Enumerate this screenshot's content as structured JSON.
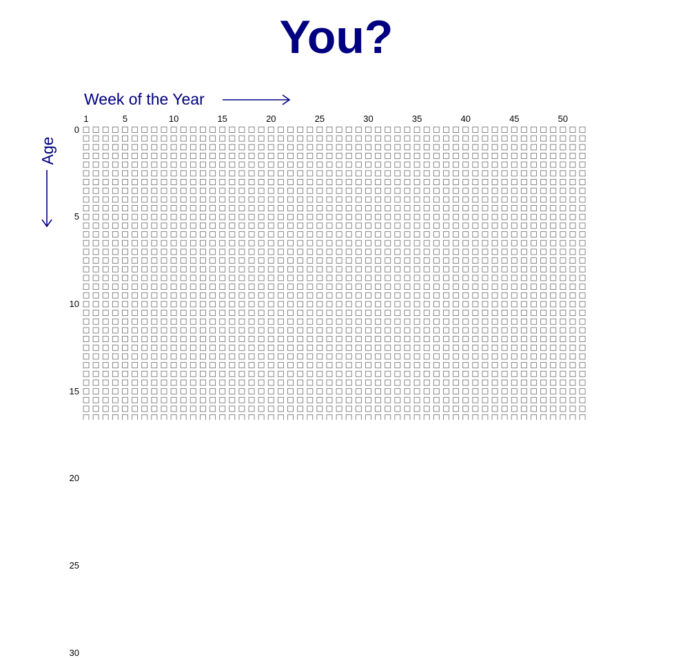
{
  "title": "You?",
  "x_axis": {
    "label": "Week of the Year",
    "arrow_icon": "right-arrow-icon",
    "ticks": [
      "1",
      "5",
      "10",
      "15",
      "20",
      "25",
      "30",
      "35",
      "40",
      "45",
      "50"
    ]
  },
  "y_axis": {
    "label": "Age",
    "arrow_icon": "down-arrow-icon",
    "ticks": [
      "0",
      "5",
      "10",
      "15",
      "20",
      "25",
      "30"
    ]
  },
  "grid": {
    "weeks_per_row": 52,
    "visible_rows": 34,
    "box_style": "empty-outlined-square",
    "box_color": "#7a7a7a"
  },
  "colors": {
    "accent": "#000080",
    "background": "#ffffff"
  }
}
